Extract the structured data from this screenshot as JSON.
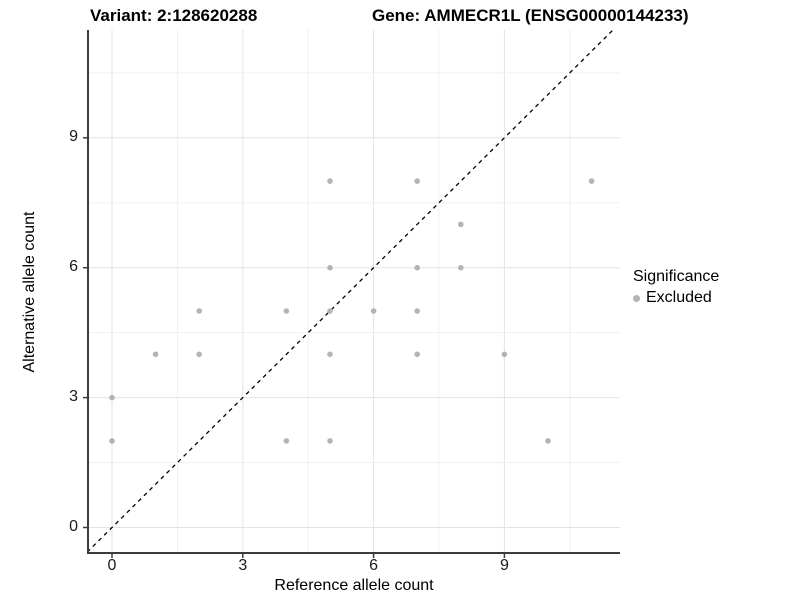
{
  "title": {
    "variant": "Variant: 2:128620288",
    "gene": "Gene: AMMECR1L (ENSG00000144233)"
  },
  "legend": {
    "title": "Significance",
    "items": [
      {
        "label": "Excluded",
        "color": "#b4b4b4"
      }
    ]
  },
  "chart_data": {
    "type": "scatter",
    "title": "Variant: 2:128620288   Gene: AMMECR1L (ENSG00000144233)",
    "xlabel": "Reference allele count",
    "ylabel": "Alternative allele count",
    "xlim": [
      -0.55,
      11.75
    ],
    "ylim": [
      -0.6,
      11.5
    ],
    "xticks": [
      0,
      3,
      6,
      9
    ],
    "yticks": [
      0,
      3,
      6,
      9
    ],
    "minor_grid_step": 1.5,
    "grid": "on",
    "legend_position": "right",
    "identity_line": {
      "type": "dashed",
      "equation": "y = x",
      "color": "#000000"
    },
    "series": [
      {
        "name": "Excluded",
        "color": "#b4b4b4",
        "points": [
          [
            0,
            2
          ],
          [
            0,
            3
          ],
          [
            1,
            4
          ],
          [
            2,
            4
          ],
          [
            2,
            5
          ],
          [
            4,
            2
          ],
          [
            4,
            5
          ],
          [
            5,
            2
          ],
          [
            5,
            4
          ],
          [
            5,
            5
          ],
          [
            5,
            6
          ],
          [
            5,
            8
          ],
          [
            6,
            5
          ],
          [
            7,
            4
          ],
          [
            7,
            5
          ],
          [
            7,
            6
          ],
          [
            7,
            8
          ],
          [
            8,
            6
          ],
          [
            8,
            7
          ],
          [
            9,
            4
          ],
          [
            10,
            2
          ],
          [
            11,
            8
          ]
        ]
      }
    ]
  },
  "colors": {
    "axis_line": "#3c3c3c",
    "major_grid": "#e3e3e3",
    "minor_grid": "#f0f0f0",
    "point": "#b4b4b4",
    "identity_line": "#000000",
    "background": "#ffffff"
  }
}
